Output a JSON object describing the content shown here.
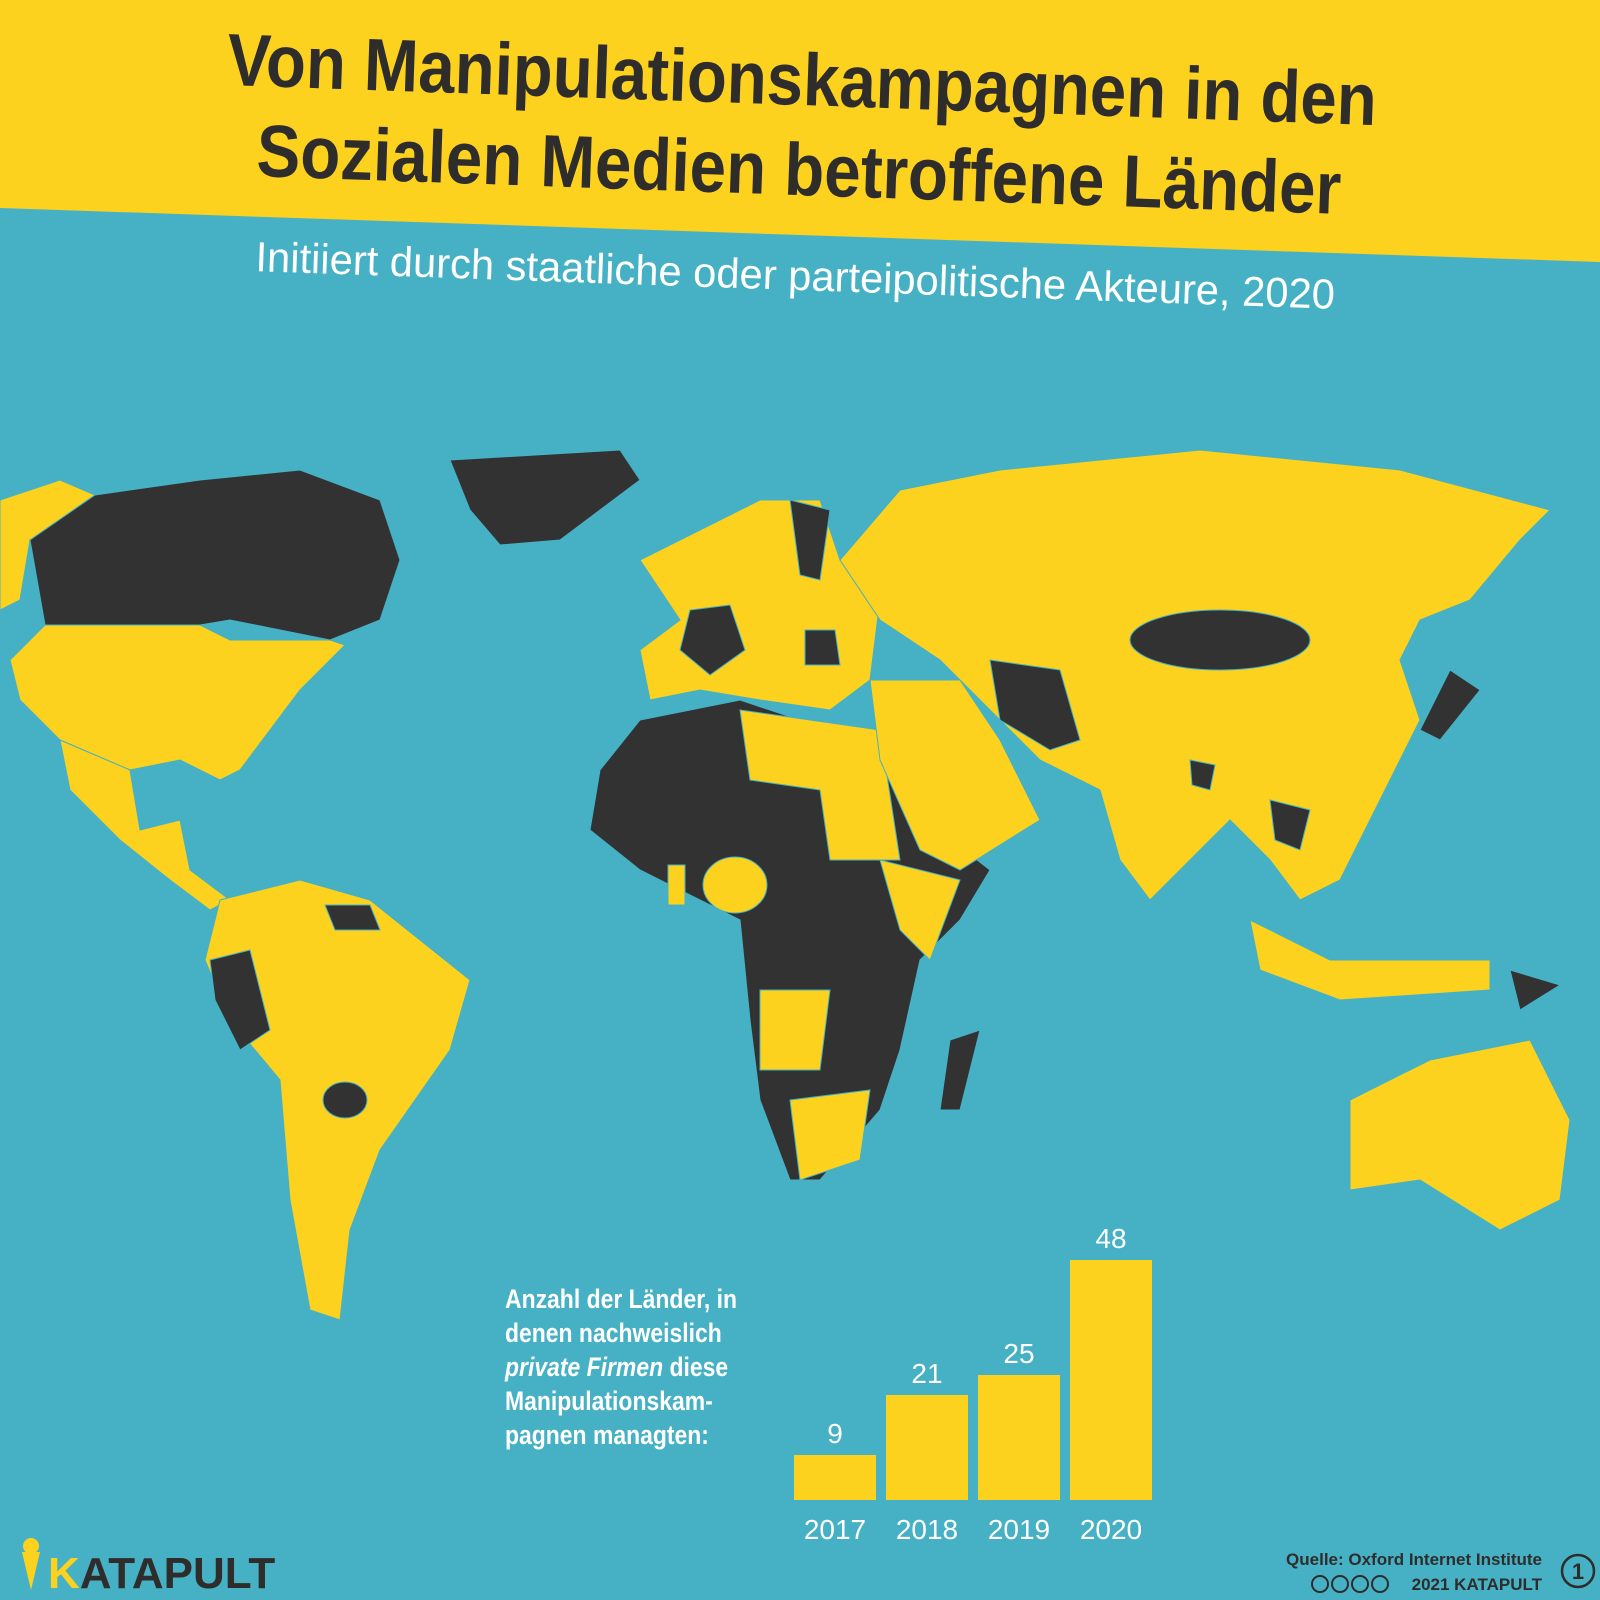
{
  "title": [
    "Von Manipulationskampagnen in den",
    "Sozialen Medien betroffene Länder"
  ],
  "subtitle": "Initiiert durch staatliche oder parteipolitische Akteure, 2020",
  "chart_data": {
    "type": "bar",
    "annotation": [
      "Anzahl der Länder, in",
      "denen nachweislich",
      [
        "private Firmen",
        " diese"
      ],
      "Manipulationskam-",
      "pagnen managten:"
    ],
    "categories": [
      "2017",
      "2018",
      "2019",
      "2020"
    ],
    "values": [
      9,
      21,
      25,
      48
    ],
    "color": "#fcd21f"
  },
  "footer": {
    "logo": [
      "K",
      "ATAPULT"
    ],
    "source": "Quelle: Oxford Internet Institute",
    "copyright": "2021 KATAPULT",
    "page": "1"
  }
}
